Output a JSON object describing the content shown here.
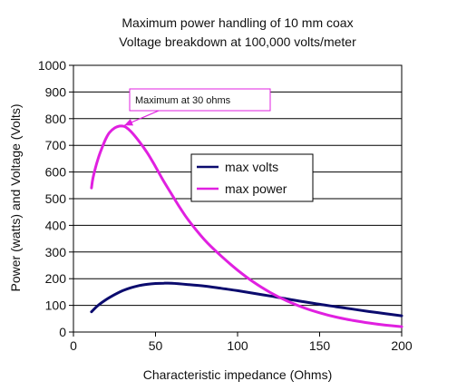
{
  "chart_data": {
    "type": "line",
    "title_lines": [
      "Maximum power handling of 10 mm coax",
      "Voltage breakdown at 100,000 volts/meter"
    ],
    "xlabel": "Characteristic impedance (Ohms)",
    "ylabel": "Power (watts) and Voltage (Volts)",
    "xlim": [
      0,
      200
    ],
    "ylim": [
      0,
      1000
    ],
    "xticks": [
      0,
      50,
      100,
      150,
      200
    ],
    "yticks": [
      0,
      100,
      200,
      300,
      400,
      500,
      600,
      700,
      800,
      900,
      1000
    ],
    "grid": "horizontal",
    "legend_position": "center",
    "series": [
      {
        "name": "max volts",
        "color": "#0b0b6e",
        "x": [
          11,
          15,
          20,
          25,
          30,
          35,
          40,
          45,
          50,
          55,
          60,
          70,
          80,
          90,
          100,
          110,
          120,
          130,
          140,
          150,
          160,
          170,
          180,
          190,
          200
        ],
        "y": [
          76,
          100,
          122,
          140,
          155,
          166,
          174,
          179,
          182,
          183,
          183,
          178,
          172,
          164,
          155,
          145,
          135,
          124,
          114,
          104,
          95,
          86,
          77,
          69,
          61
        ]
      },
      {
        "name": "max power",
        "color": "#e020e0",
        "x": [
          11,
          12,
          15,
          18,
          20,
          22,
          25,
          28,
          30,
          32,
          35,
          40,
          45,
          50,
          55,
          60,
          65,
          70,
          80,
          90,
          100,
          110,
          120,
          130,
          140,
          150,
          160,
          170,
          180,
          190,
          200
        ],
        "y": [
          540,
          580,
          650,
          700,
          728,
          748,
          765,
          772,
          772,
          768,
          752,
          715,
          672,
          620,
          565,
          515,
          465,
          420,
          345,
          285,
          232,
          186,
          148,
          117,
          92,
          72,
          56,
          44,
          34,
          26,
          20
        ]
      }
    ],
    "annotation": {
      "text": "Maximum at 30 ohms",
      "x": 30,
      "y": 772
    }
  }
}
